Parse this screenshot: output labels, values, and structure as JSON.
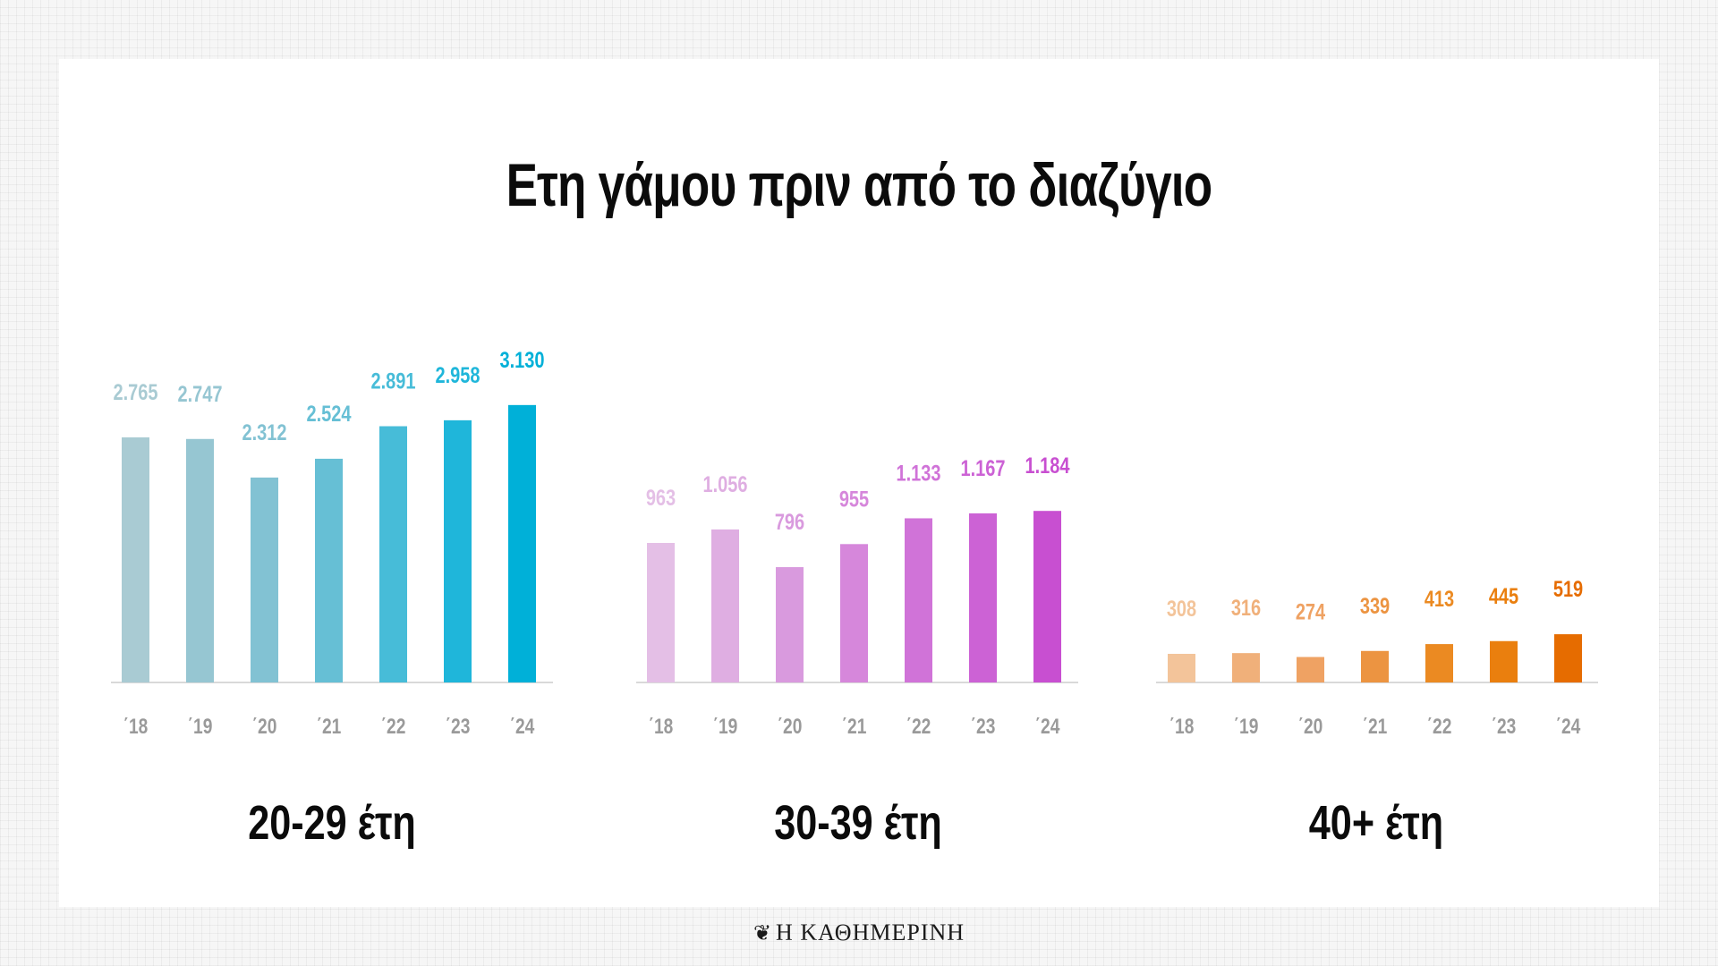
{
  "title": "Ετη γάμου πριν από το διαζύγιο",
  "logo": {
    "mark_icon": "eagle-icon",
    "text": "Η ΚΑΘΗΜΕΡΙΝΗ"
  },
  "chart_data": [
    {
      "type": "bar",
      "group_label": "20-29 έτη",
      "categories": [
        "΄18",
        "΄19",
        "΄20",
        "΄21",
        "΄22",
        "΄23",
        "΄24"
      ],
      "values": [
        2765,
        2747,
        2312,
        2524,
        2891,
        2958,
        3130
      ],
      "value_labels": [
        "2.765",
        "2.747",
        "2.312",
        "2.524",
        "2.891",
        "2.958",
        "3.130"
      ],
      "colors": [
        "#a9cbd3",
        "#96c6d2",
        "#82c2d3",
        "#66bfd5",
        "#47bcd8",
        "#1fb6da",
        "#00b0d8"
      ],
      "tick_color": "#9a9a9a"
    },
    {
      "type": "bar",
      "group_label": "30-39 έτη",
      "categories": [
        "΄18",
        "΄19",
        "΄20",
        "΄21",
        "΄22",
        "΄23",
        "΄24"
      ],
      "values": [
        963,
        1056,
        796,
        955,
        1133,
        1167,
        1184
      ],
      "value_labels": [
        "963",
        "1.056",
        "796",
        "955",
        "1.133",
        "1.167",
        "1.184"
      ],
      "colors": [
        "#e4bfe6",
        "#dfaee2",
        "#d99ade",
        "#d687db",
        "#d073d8",
        "#cc62d5",
        "#c84fd1"
      ],
      "tick_color": "#9a9a9a"
    },
    {
      "type": "bar",
      "group_label": "40+ έτη",
      "categories": [
        "΄18",
        "΄19",
        "΄20",
        "΄21",
        "΄22",
        "΄23",
        "΄24"
      ],
      "values": [
        308,
        316,
        274,
        339,
        413,
        445,
        519
      ],
      "value_labels": [
        "308",
        "316",
        "274",
        "339",
        "413",
        "445",
        "519"
      ],
      "colors": [
        "#f3c49a",
        "#f0b07a",
        "#efa263",
        "#ec9441",
        "#eb8a22",
        "#ea7f0e",
        "#e66c00"
      ],
      "tick_color": "#9a9a9a"
    }
  ]
}
